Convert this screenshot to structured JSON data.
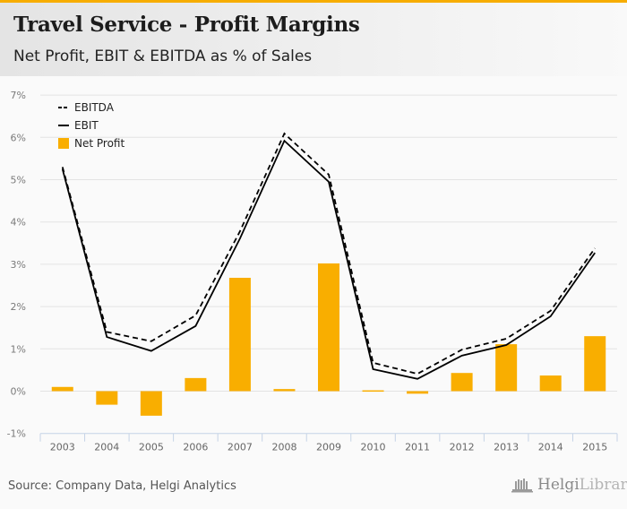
{
  "header": {
    "title": "Travel Service - Profit Margins",
    "subtitle": "Net Profit, EBIT & EBITDA as % of Sales"
  },
  "footer": {
    "source": "Source: Company Data, Helgi Analytics",
    "logo_primary": "Helgi",
    "logo_secondary": "Library."
  },
  "colors": {
    "accent": "#f7ad00",
    "bar": "#f9ae00",
    "line": "#000000",
    "grid": "#e3e3e3",
    "axis": "#c5d3e6"
  },
  "chart_data": {
    "type": "bar",
    "title": "Travel Service - Profit Margins",
    "subtitle": "Net Profit, EBIT & EBITDA as % of Sales",
    "xlabel": "",
    "ylabel": "",
    "categories": [
      "2003",
      "2004",
      "2005",
      "2006",
      "2007",
      "2008",
      "2009",
      "2010",
      "2011",
      "2012",
      "2013",
      "2014",
      "2015"
    ],
    "ylim": [
      -1,
      7
    ],
    "yticks": [
      -1,
      0,
      1,
      2,
      3,
      4,
      5,
      6,
      7
    ],
    "ytick_labels": [
      "-1%",
      "0%",
      "1%",
      "2%",
      "3%",
      "4%",
      "5%",
      "6%",
      "7%"
    ],
    "grid": true,
    "legend_position": "top-left",
    "series": [
      {
        "name": "EBITDA",
        "type": "line",
        "style": "dashed",
        "values": [
          5.3,
          1.4,
          1.18,
          1.79,
          3.78,
          6.09,
          5.12,
          0.67,
          0.41,
          0.98,
          1.24,
          1.9,
          3.38
        ]
      },
      {
        "name": "EBIT",
        "type": "line",
        "style": "solid",
        "values": [
          5.25,
          1.28,
          0.95,
          1.54,
          3.61,
          5.92,
          4.95,
          0.52,
          0.29,
          0.84,
          1.09,
          1.77,
          3.27
        ]
      },
      {
        "name": "Net Profit",
        "type": "bar",
        "values": [
          0.1,
          -0.32,
          -0.58,
          0.31,
          2.68,
          0.05,
          3.02,
          0.02,
          -0.06,
          0.43,
          1.11,
          0.37,
          1.3
        ]
      }
    ]
  }
}
